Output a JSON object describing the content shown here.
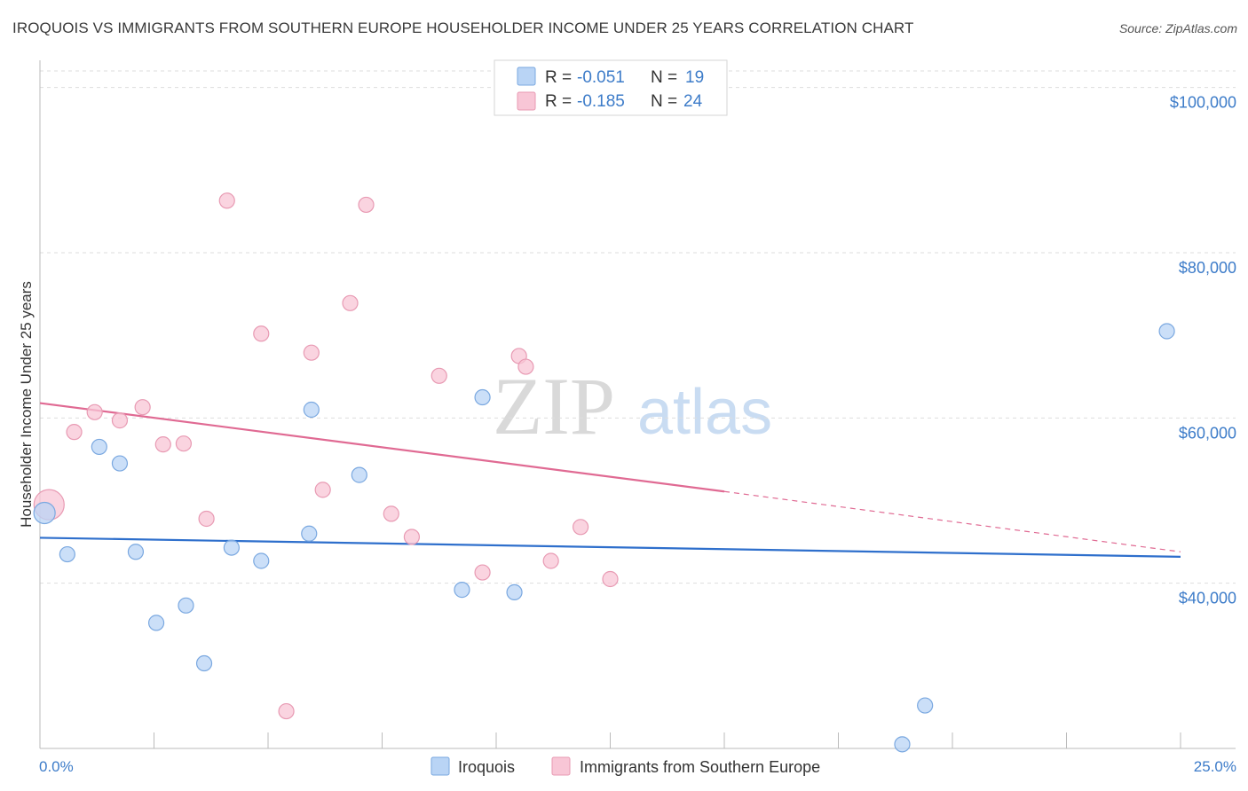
{
  "title": "IROQUOIS VS IMMIGRANTS FROM SOUTHERN EUROPE HOUSEHOLDER INCOME UNDER 25 YEARS CORRELATION CHART",
  "source": "Source: ZipAtlas.com",
  "watermark": {
    "zip": "ZIP",
    "atlas": "atlas"
  },
  "legend": {
    "rows": [
      {
        "r_label": "R =",
        "r_value": "-0.051",
        "n_label": "N =",
        "n_value": "19"
      },
      {
        "r_label": "R =",
        "r_value": "-0.185",
        "n_label": "N =",
        "n_value": "24"
      }
    ]
  },
  "colors": {
    "blue_fill": "#b9d4f5",
    "blue_stroke": "#7aa8e0",
    "blue_line": "#2e6fcc",
    "pink_fill": "#f8c6d6",
    "pink_stroke": "#e89ab3",
    "pink_line": "#e06a93"
  },
  "chart_data": {
    "type": "scatter",
    "title": "IROQUOIS VS IMMIGRANTS FROM SOUTHERN EUROPE HOUSEHOLDER INCOME UNDER 25 YEARS CORRELATION CHART",
    "xlabel": "",
    "ylabel": "Householder Income Under 25 years",
    "xlim": [
      0,
      25
    ],
    "ylim": [
      20000,
      102000
    ],
    "x_tick_labels": [
      "0.0%",
      "25.0%"
    ],
    "y_ticks": [
      40000,
      60000,
      80000,
      100000
    ],
    "y_tick_labels": [
      "$40,000",
      "$60,000",
      "$80,000",
      "$100,000"
    ],
    "series": [
      {
        "name": "Iroquois",
        "points": [
          {
            "x": 0.1,
            "y": 48500
          },
          {
            "x": 0.6,
            "y": 43500
          },
          {
            "x": 1.3,
            "y": 56500
          },
          {
            "x": 1.75,
            "y": 54500
          },
          {
            "x": 2.1,
            "y": 43800
          },
          {
            "x": 2.55,
            "y": 35200
          },
          {
            "x": 3.2,
            "y": 37300
          },
          {
            "x": 3.6,
            "y": 30300
          },
          {
            "x": 4.2,
            "y": 44300
          },
          {
            "x": 4.85,
            "y": 42700
          },
          {
            "x": 5.9,
            "y": 46000
          },
          {
            "x": 5.95,
            "y": 61000
          },
          {
            "x": 7.0,
            "y": 53100
          },
          {
            "x": 9.25,
            "y": 39200
          },
          {
            "x": 9.7,
            "y": 62500
          },
          {
            "x": 10.4,
            "y": 38900
          },
          {
            "x": 18.9,
            "y": 20500
          },
          {
            "x": 19.4,
            "y": 25200
          },
          {
            "x": 24.7,
            "y": 70500
          }
        ],
        "trend": {
          "x": [
            0,
            25
          ],
          "y": [
            45500,
            43200
          ]
        }
      },
      {
        "name": "Immigrants from Southern Europe",
        "points": [
          {
            "x": 0.2,
            "y": 49500
          },
          {
            "x": 0.75,
            "y": 58300
          },
          {
            "x": 1.2,
            "y": 60700
          },
          {
            "x": 1.75,
            "y": 59700
          },
          {
            "x": 2.25,
            "y": 61300
          },
          {
            "x": 2.7,
            "y": 56800
          },
          {
            "x": 3.15,
            "y": 56900
          },
          {
            "x": 3.65,
            "y": 47800
          },
          {
            "x": 4.1,
            "y": 86300
          },
          {
            "x": 4.85,
            "y": 70200
          },
          {
            "x": 5.4,
            "y": 24500
          },
          {
            "x": 5.95,
            "y": 67900
          },
          {
            "x": 6.2,
            "y": 51300
          },
          {
            "x": 6.8,
            "y": 73900
          },
          {
            "x": 7.15,
            "y": 85800
          },
          {
            "x": 7.7,
            "y": 48400
          },
          {
            "x": 8.15,
            "y": 45600
          },
          {
            "x": 8.75,
            "y": 65100
          },
          {
            "x": 9.7,
            "y": 41300
          },
          {
            "x": 10.5,
            "y": 67500
          },
          {
            "x": 10.65,
            "y": 66200
          },
          {
            "x": 11.2,
            "y": 42700
          },
          {
            "x": 11.85,
            "y": 46800
          },
          {
            "x": 12.5,
            "y": 40500
          }
        ],
        "trend": {
          "x": [
            0,
            15
          ],
          "y": [
            61800,
            51100
          ]
        },
        "trend_dashed": {
          "x": [
            15,
            25
          ],
          "y": [
            51100,
            43800
          ]
        }
      }
    ]
  }
}
